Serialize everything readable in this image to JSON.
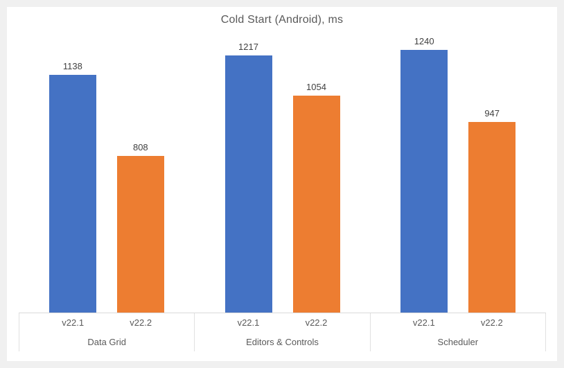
{
  "page": {
    "background_color": "#f0f0f0",
    "card_background_color": "#ffffff"
  },
  "chart_data": {
    "type": "bar",
    "title": "Cold Start (Android), ms",
    "categories": [
      "Data Grid",
      "Editors & Controls",
      "Scheduler"
    ],
    "series": [
      {
        "name": "v22.1",
        "color": "#4472C4",
        "values": [
          1138,
          1217,
          1240
        ]
      },
      {
        "name": "v22.2",
        "color": "#ED7D31",
        "values": [
          808,
          1054,
          947
        ]
      }
    ],
    "data_labels": true,
    "legend": "none",
    "grid": false,
    "value_axis": {
      "visible": false,
      "min": 170,
      "max": 1310
    },
    "axis_line_color": "#d9d9d9",
    "divider_color": "#e0e0e0",
    "title_color": "#595959",
    "label_color": "#595959",
    "value_label_color": "#404040"
  }
}
